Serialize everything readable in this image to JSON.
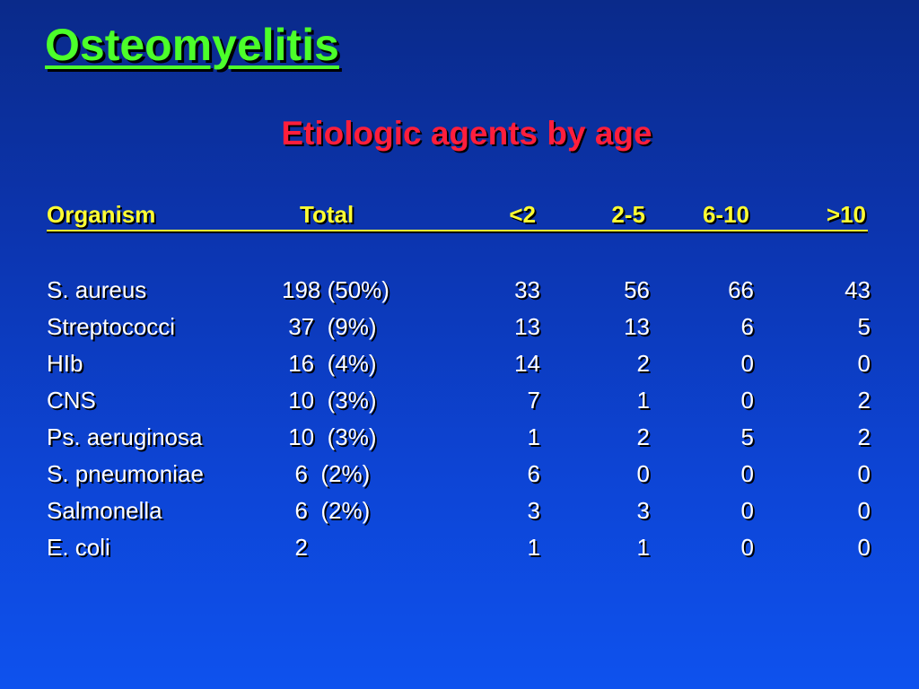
{
  "slide": {
    "title": "Osteomyelitis",
    "subtitle": "Etiologic agents by age"
  },
  "table": {
    "headers": {
      "organism": "Organism",
      "total": "Total",
      "lt2": "<2",
      "age2to5": "2-5",
      "age6to10": "6-10",
      "gt10": ">10"
    },
    "rows": [
      {
        "organism": "S. aureus",
        "total": "198 (50%)",
        "lt2": "33",
        "age2to5": "56",
        "age6to10": "66",
        "gt10": "43"
      },
      {
        "organism": "Streptococci",
        "total": " 37  (9%)",
        "lt2": "13",
        "age2to5": "13",
        "age6to10": "6",
        "gt10": "5"
      },
      {
        "organism": "HIb",
        "total": " 16  (4%)",
        "lt2": "14",
        "age2to5": "2",
        "age6to10": "0",
        "gt10": "0"
      },
      {
        "organism": "CNS",
        "total": " 10  (3%)",
        "lt2": "7",
        "age2to5": "1",
        "age6to10": "0",
        "gt10": "2"
      },
      {
        "organism": "Ps. aeruginosa",
        "total": " 10  (3%)",
        "lt2": "1",
        "age2to5": "2",
        "age6to10": "5",
        "gt10": "2"
      },
      {
        "organism": "S. pneumoniae",
        "total": "  6  (2%)",
        "lt2": "6",
        "age2to5": "0",
        "age6to10": "0",
        "gt10": "0"
      },
      {
        "organism": "Salmonella",
        "total": "  6  (2%)",
        "lt2": "3",
        "age2to5": "3",
        "age6to10": "0",
        "gt10": "0"
      },
      {
        "organism": "E. coli",
        "total": "  2",
        "lt2": "1",
        "age2to5": "1",
        "age6to10": "0",
        "gt10": "0"
      }
    ]
  },
  "colors": {
    "background_top": "#0a2a8a",
    "background_bottom": "#0e52ee",
    "title": "#4cff2a",
    "subtitle": "#ff1e3c",
    "header": "#ffff33",
    "body_text": "#ffffff"
  }
}
